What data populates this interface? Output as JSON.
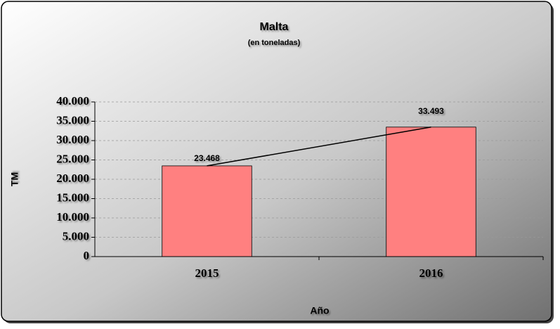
{
  "chart_data": {
    "type": "bar",
    "title": "Malta",
    "subtitle": "(en toneladas)",
    "x_label": "Año",
    "y_label": "TM",
    "categories": [
      "2015",
      "2016"
    ],
    "values": [
      23468,
      33493
    ],
    "value_labels": [
      "23.468",
      "33.493"
    ],
    "color": "#ff8080",
    "line_overlay": true,
    "line_color": "#000000",
    "ylim": [
      0,
      40000
    ],
    "yticks": [
      0,
      {
        "value": 5000,
        "label": "5.000"
      },
      {
        "value": 10000,
        "label": "10.000"
      },
      {
        "value": 15000,
        "label": "15.000"
      },
      {
        "value": 20000,
        "label": "20.000"
      },
      {
        "value": 25000,
        "label": "25.000"
      },
      {
        "value": 30000,
        "label": "30.000"
      },
      {
        "value": 35000,
        "label": "35.000"
      },
      {
        "value": 40000,
        "label": "40.000"
      }
    ],
    "grid": true
  }
}
